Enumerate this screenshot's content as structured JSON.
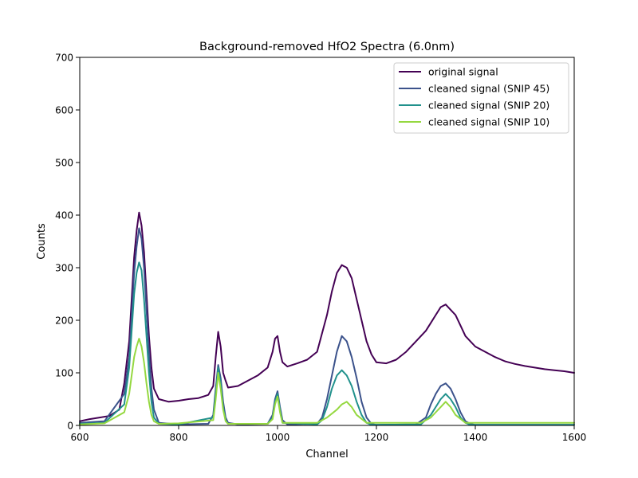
{
  "chart_data": {
    "type": "line",
    "title": "Background-removed HfO2 Spectra (6.0nm)",
    "xlabel": "Channel",
    "ylabel": "Counts",
    "xlim": [
      600,
      1600
    ],
    "ylim": [
      0,
      700
    ],
    "xticks": [
      600,
      800,
      1000,
      1200,
      1400,
      1600
    ],
    "yticks": [
      0,
      100,
      200,
      300,
      400,
      500,
      600,
      700
    ],
    "grid": false,
    "legend_position": "top-right",
    "series": [
      {
        "name": "original signal",
        "color": "#440154",
        "x": [
          600,
          620,
          640,
          660,
          680,
          690,
          700,
          705,
          710,
          715,
          720,
          725,
          730,
          735,
          740,
          745,
          750,
          760,
          780,
          800,
          820,
          840,
          860,
          870,
          875,
          880,
          885,
          890,
          895,
          900,
          920,
          940,
          960,
          980,
          990,
          995,
          1000,
          1005,
          1010,
          1020,
          1040,
          1060,
          1080,
          1090,
          1100,
          1110,
          1120,
          1130,
          1140,
          1150,
          1160,
          1170,
          1180,
          1190,
          1200,
          1220,
          1240,
          1260,
          1280,
          1300,
          1310,
          1320,
          1330,
          1340,
          1350,
          1360,
          1370,
          1380,
          1390,
          1400,
          1420,
          1440,
          1460,
          1480,
          1500,
          1520,
          1540,
          1560,
          1580,
          1600
        ],
        "y": [
          8,
          12,
          15,
          18,
          30,
          80,
          160,
          240,
          320,
          370,
          405,
          380,
          330,
          250,
          170,
          110,
          70,
          50,
          45,
          47,
          50,
          52,
          58,
          75,
          130,
          178,
          150,
          100,
          85,
          72,
          75,
          85,
          95,
          110,
          140,
          165,
          170,
          140,
          120,
          112,
          118,
          125,
          140,
          175,
          210,
          255,
          290,
          305,
          300,
          280,
          240,
          200,
          160,
          135,
          120,
          118,
          125,
          140,
          160,
          180,
          195,
          210,
          225,
          230,
          220,
          210,
          190,
          170,
          160,
          150,
          140,
          130,
          122,
          117,
          113,
          110,
          107,
          105,
          103,
          100
        ]
      },
      {
        "name": "cleaned signal (SNIP 45)",
        "color": "#3b528b",
        "x": [
          600,
          650,
          690,
          700,
          705,
          710,
          715,
          720,
          725,
          730,
          735,
          740,
          745,
          750,
          760,
          800,
          860,
          870,
          875,
          880,
          885,
          890,
          895,
          900,
          920,
          980,
          990,
          995,
          1000,
          1005,
          1010,
          1020,
          1080,
          1090,
          1100,
          1110,
          1120,
          1130,
          1140,
          1150,
          1160,
          1170,
          1180,
          1190,
          1200,
          1280,
          1300,
          1310,
          1320,
          1330,
          1340,
          1350,
          1360,
          1370,
          1380,
          1390,
          1400,
          1500,
          1600
        ],
        "y": [
          5,
          8,
          60,
          130,
          210,
          290,
          340,
          375,
          355,
          300,
          220,
          140,
          70,
          30,
          5,
          2,
          3,
          20,
          70,
          115,
          90,
          45,
          15,
          5,
          2,
          3,
          20,
          50,
          65,
          35,
          10,
          2,
          3,
          15,
          50,
          95,
          140,
          170,
          160,
          130,
          90,
          45,
          15,
          3,
          1,
          2,
          15,
          40,
          60,
          75,
          80,
          70,
          50,
          25,
          8,
          3,
          1,
          1,
          1
        ]
      },
      {
        "name": "cleaned signal (SNIP 20)",
        "color": "#21918c",
        "x": [
          600,
          650,
          690,
          700,
          705,
          710,
          715,
          720,
          725,
          730,
          735,
          740,
          745,
          750,
          760,
          800,
          870,
          875,
          880,
          885,
          890,
          895,
          900,
          980,
          990,
          995,
          1000,
          1005,
          1010,
          1080,
          1090,
          1100,
          1110,
          1120,
          1130,
          1140,
          1150,
          1160,
          1170,
          1180,
          1190,
          1290,
          1310,
          1320,
          1330,
          1340,
          1350,
          1360,
          1370,
          1380,
          1390,
          1600
        ],
        "y": [
          3,
          5,
          40,
          110,
          180,
          250,
          290,
          310,
          295,
          240,
          170,
          100,
          45,
          15,
          3,
          2,
          15,
          60,
          110,
          80,
          35,
          10,
          3,
          3,
          15,
          45,
          60,
          30,
          5,
          2,
          10,
          35,
          70,
          95,
          105,
          95,
          75,
          45,
          20,
          5,
          1,
          2,
          20,
          35,
          50,
          60,
          50,
          35,
          15,
          5,
          1,
          1
        ]
      },
      {
        "name": "cleaned signal (SNIP 10)",
        "color": "#95d840",
        "x": [
          600,
          650,
          690,
          700,
          705,
          710,
          715,
          720,
          725,
          730,
          735,
          740,
          745,
          750,
          760,
          800,
          870,
          875,
          880,
          885,
          890,
          895,
          900,
          980,
          990,
          995,
          1000,
          1005,
          1010,
          1080,
          1100,
          1120,
          1130,
          1140,
          1150,
          1160,
          1180,
          1290,
          1310,
          1320,
          1330,
          1340,
          1350,
          1360,
          1380,
          1600
        ],
        "y": [
          2,
          4,
          25,
          60,
          95,
          130,
          150,
          165,
          150,
          120,
          80,
          45,
          20,
          8,
          3,
          4,
          10,
          50,
          100,
          70,
          30,
          8,
          3,
          3,
          12,
          40,
          55,
          25,
          5,
          5,
          15,
          30,
          40,
          45,
          35,
          20,
          5,
          5,
          15,
          25,
          35,
          45,
          35,
          20,
          5,
          5
        ]
      }
    ]
  }
}
